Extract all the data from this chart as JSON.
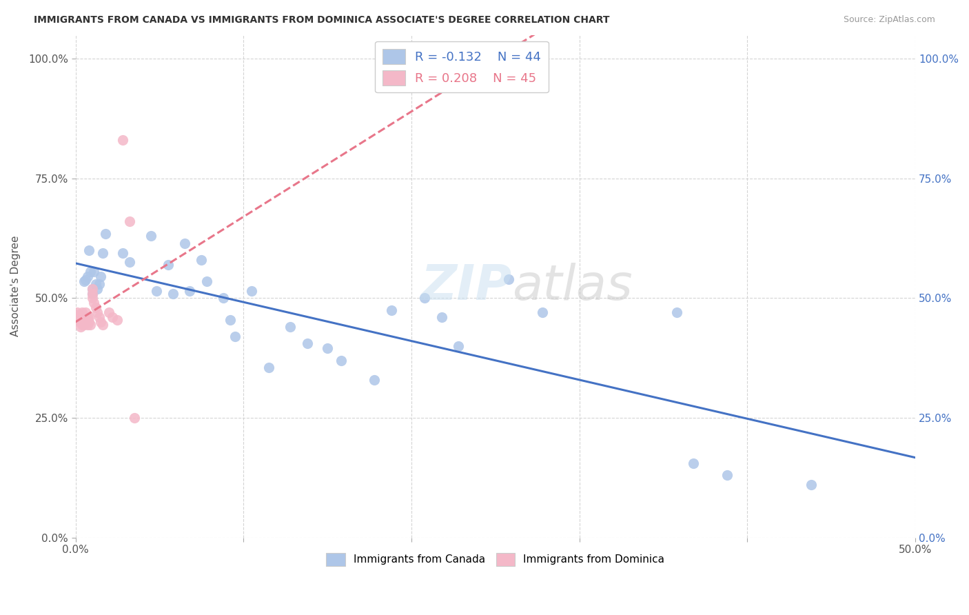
{
  "title": "IMMIGRANTS FROM CANADA VS IMMIGRANTS FROM DOMINICA ASSOCIATE'S DEGREE CORRELATION CHART",
  "source": "Source: ZipAtlas.com",
  "ylabel_label": "Associate's Degree",
  "legend_canada": "Immigrants from Canada",
  "legend_dominica": "Immigrants from Dominica",
  "R_canada": -0.132,
  "N_canada": 44,
  "R_dominica": 0.208,
  "N_dominica": 45,
  "canada_color": "#aec6e8",
  "dominica_color": "#f4b8c8",
  "canada_line_color": "#4472c4",
  "dominica_line_color": "#e8768a",
  "background_color": "#ffffff",
  "grid_color": "#d0d0d0",
  "xlim": [
    0.0,
    0.5
  ],
  "ylim": [
    0.0,
    1.05
  ],
  "canada_x": [
    0.005,
    0.006,
    0.007,
    0.008,
    0.009,
    0.01,
    0.01,
    0.011,
    0.012,
    0.013,
    0.014,
    0.015,
    0.016,
    0.018,
    0.028,
    0.032,
    0.045,
    0.048,
    0.055,
    0.058,
    0.065,
    0.068,
    0.075,
    0.078,
    0.088,
    0.092,
    0.095,
    0.105,
    0.115,
    0.128,
    0.138,
    0.15,
    0.158,
    0.178,
    0.188,
    0.208,
    0.218,
    0.228,
    0.258,
    0.278,
    0.358,
    0.368,
    0.388,
    0.438
  ],
  "canada_y": [
    0.535,
    0.538,
    0.545,
    0.6,
    0.555,
    0.52,
    0.51,
    0.555,
    0.53,
    0.52,
    0.53,
    0.545,
    0.595,
    0.635,
    0.595,
    0.575,
    0.63,
    0.515,
    0.57,
    0.51,
    0.615,
    0.515,
    0.58,
    0.535,
    0.5,
    0.455,
    0.42,
    0.515,
    0.355,
    0.44,
    0.405,
    0.395,
    0.37,
    0.33,
    0.475,
    0.5,
    0.46,
    0.4,
    0.54,
    0.47,
    0.47,
    0.155,
    0.13,
    0.11
  ],
  "dominica_x": [
    0.0,
    0.001,
    0.001,
    0.001,
    0.002,
    0.002,
    0.002,
    0.002,
    0.003,
    0.003,
    0.003,
    0.003,
    0.003,
    0.003,
    0.004,
    0.004,
    0.004,
    0.004,
    0.004,
    0.005,
    0.005,
    0.005,
    0.005,
    0.006,
    0.006,
    0.007,
    0.007,
    0.008,
    0.008,
    0.009,
    0.01,
    0.01,
    0.01,
    0.011,
    0.012,
    0.013,
    0.014,
    0.015,
    0.016,
    0.02,
    0.022,
    0.025,
    0.028,
    0.032,
    0.035
  ],
  "dominica_y": [
    0.455,
    0.46,
    0.465,
    0.47,
    0.455,
    0.46,
    0.465,
    0.455,
    0.455,
    0.46,
    0.455,
    0.45,
    0.455,
    0.44,
    0.46,
    0.47,
    0.455,
    0.45,
    0.445,
    0.46,
    0.455,
    0.45,
    0.445,
    0.47,
    0.455,
    0.46,
    0.445,
    0.46,
    0.45,
    0.445,
    0.52,
    0.51,
    0.5,
    0.49,
    0.48,
    0.47,
    0.46,
    0.45,
    0.445,
    0.47,
    0.46,
    0.455,
    0.83,
    0.66,
    0.25
  ]
}
